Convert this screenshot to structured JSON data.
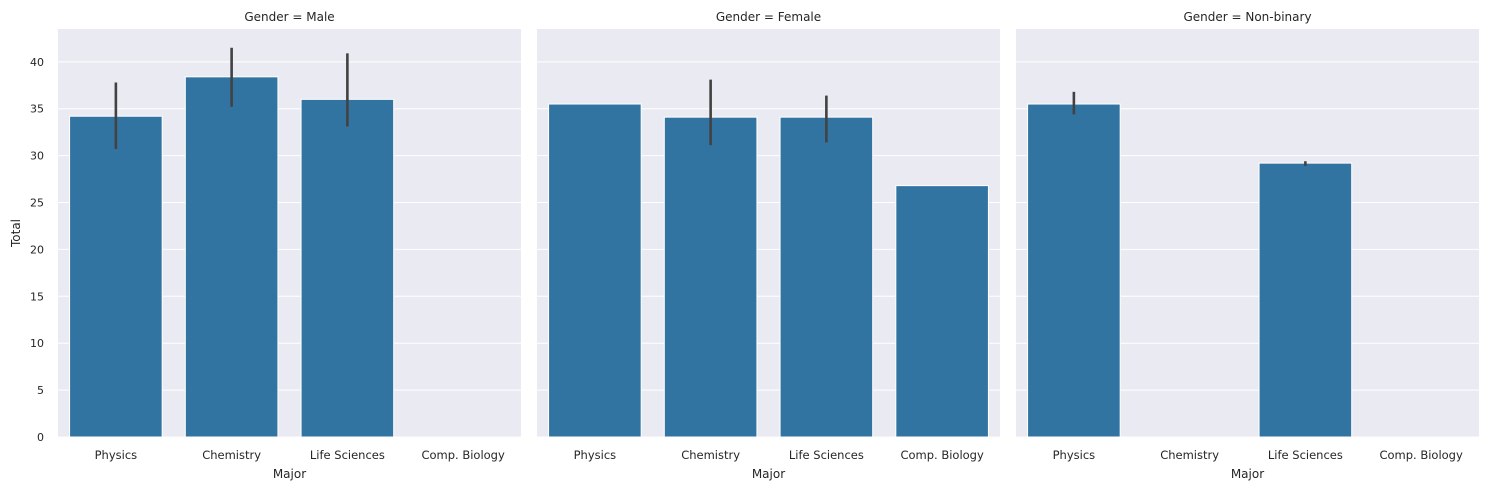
{
  "chart_data": {
    "type": "bar",
    "facet_variable": "Gender",
    "ylabel": "Total",
    "xlabel": "Major",
    "ylim": [
      0,
      43.5
    ],
    "yticks": [
      0,
      5,
      10,
      15,
      20,
      25,
      30,
      35,
      40
    ],
    "grid": true,
    "background_color": "#eaeaf2",
    "bar_color": "#3274a1",
    "errorbar_color": "#424242",
    "categories": [
      "Physics",
      "Chemistry",
      "Life Sciences",
      "Comp. Biology"
    ],
    "panels": [
      {
        "title": "Gender = Male",
        "values": [
          34.2,
          38.4,
          36.0,
          null
        ],
        "errors": [
          [
            30.7,
            37.8
          ],
          [
            35.2,
            41.5
          ],
          [
            33.1,
            40.9
          ],
          null
        ]
      },
      {
        "title": "Gender = Female",
        "values": [
          35.5,
          34.1,
          34.1,
          26.8
        ],
        "errors": [
          null,
          [
            31.1,
            38.1
          ],
          [
            31.4,
            36.4
          ],
          null
        ]
      },
      {
        "title": "Gender = Non-binary",
        "values": [
          35.5,
          null,
          29.2,
          null
        ],
        "errors": [
          [
            34.4,
            36.8
          ],
          null,
          [
            28.9,
            29.4
          ],
          null
        ]
      }
    ]
  }
}
